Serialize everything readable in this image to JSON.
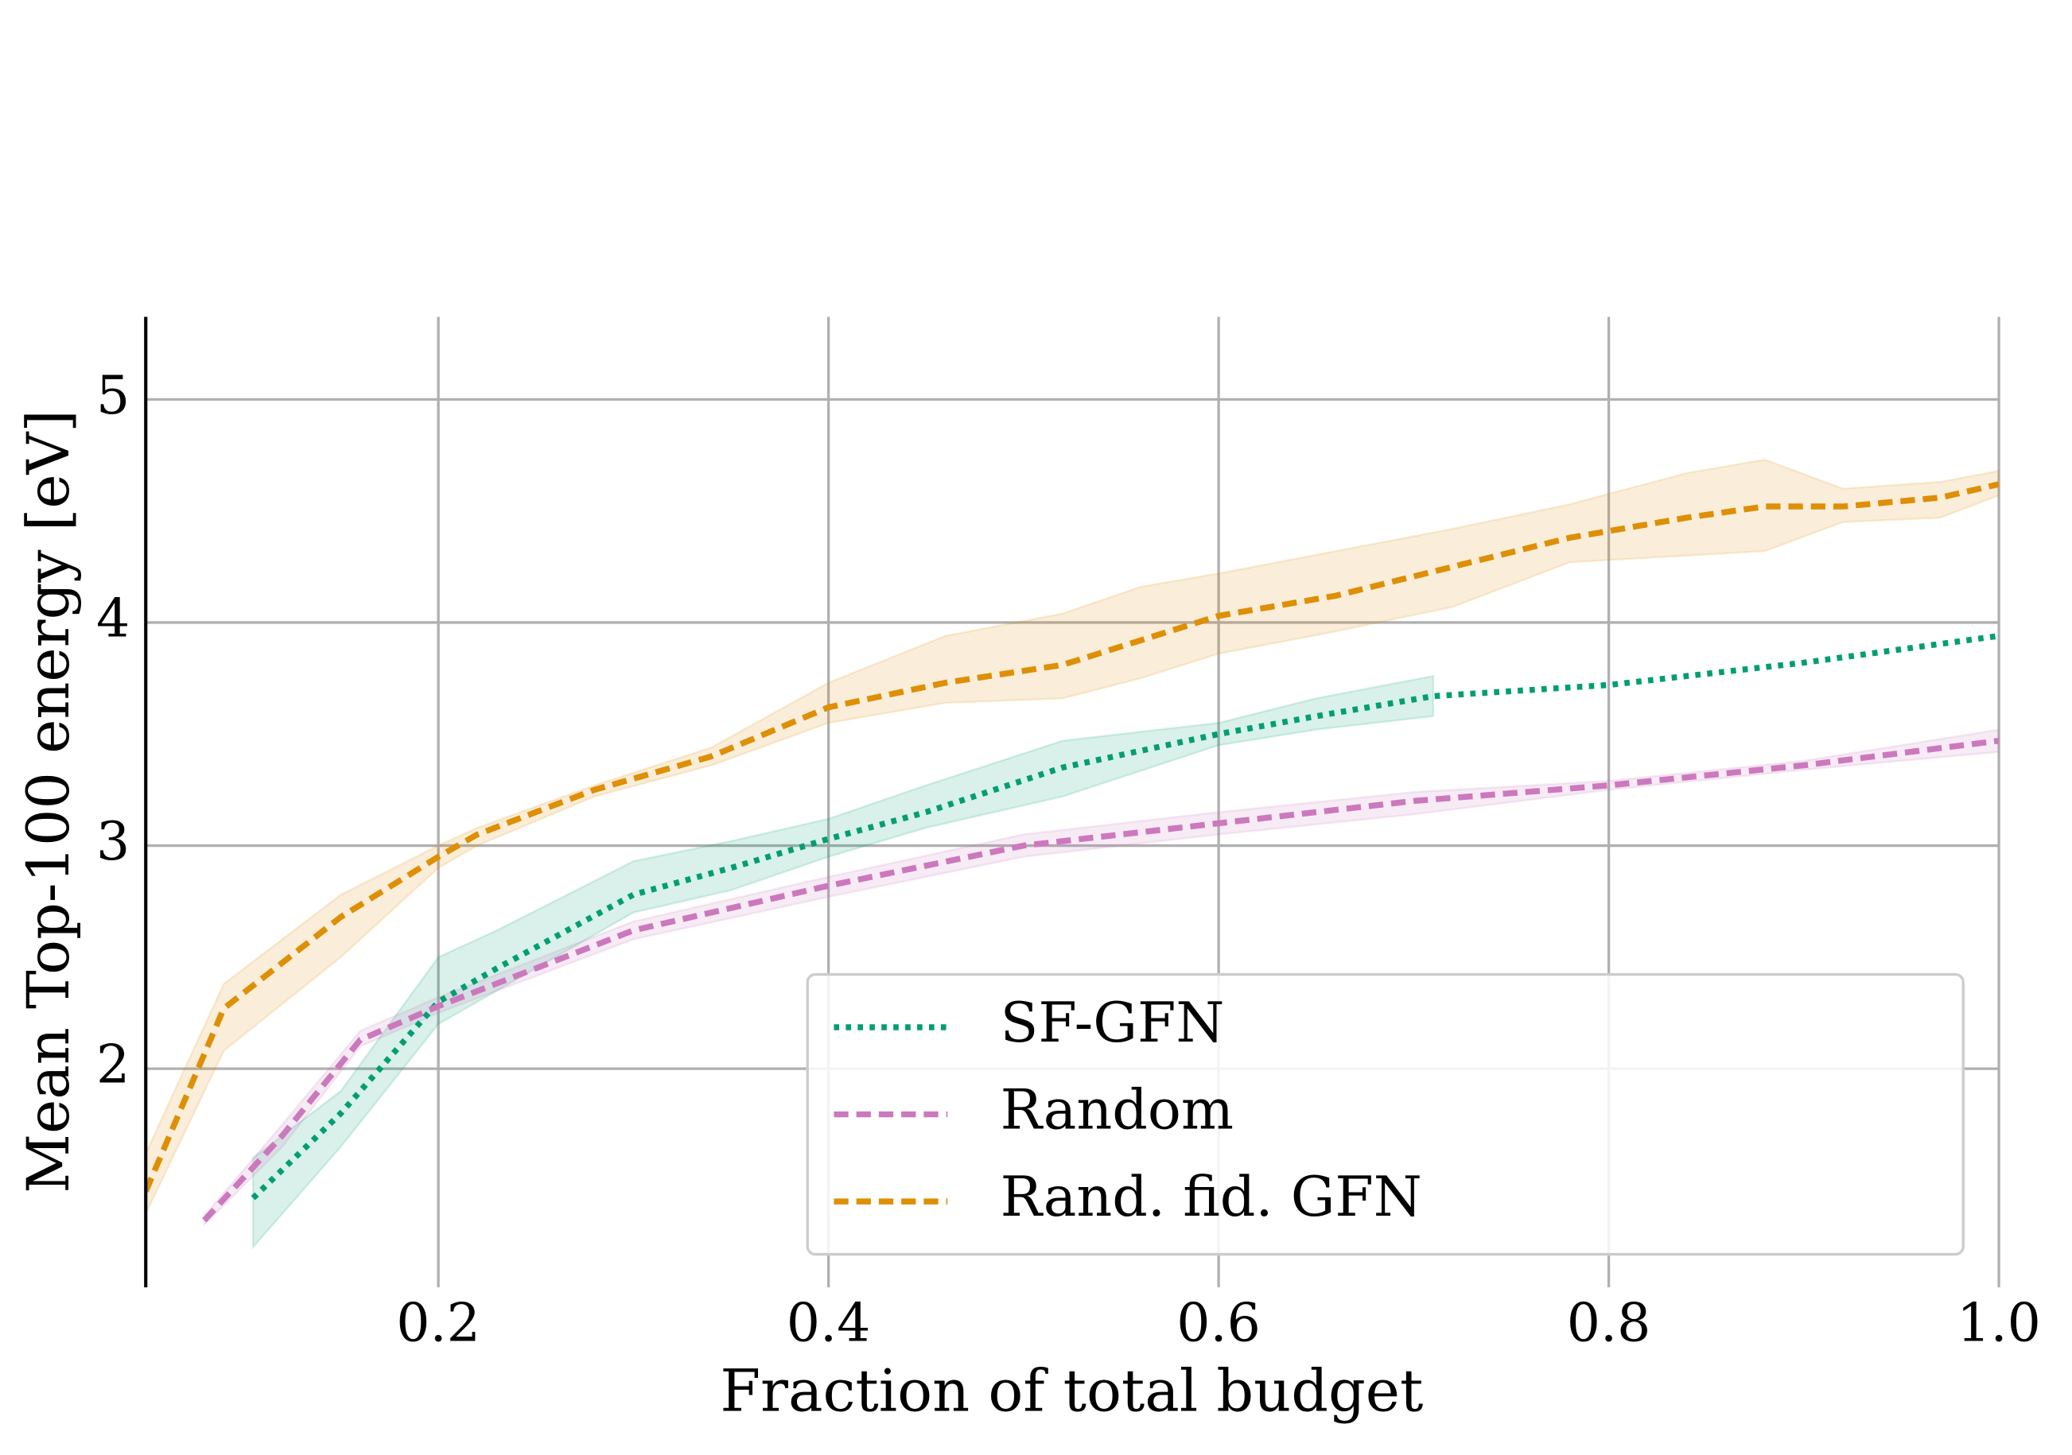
{
  "chart_data": {
    "type": "line",
    "x_label": "Fraction of total budget",
    "y_label": "Mean Top-100 energy [eV]",
    "xlim": [
      0.05,
      1.0
    ],
    "ylim": [
      1.02,
      5.37
    ],
    "xticks": [
      0.2,
      0.4,
      0.6,
      0.8,
      {
        "value": 1,
        "label": "1.0"
      }
    ],
    "yticks": [
      2,
      3,
      4,
      5
    ],
    "grid": true,
    "legend": "lower right",
    "series": [
      {
        "name": "SF-GFN",
        "color": "#029e73",
        "dash": "dotted",
        "x": [
          0.105,
          0.15,
          0.2,
          0.23,
          0.3,
          0.35,
          0.4,
          0.45,
          0.52,
          0.6,
          0.65,
          0.71,
          0.8,
          0.9,
          1.0
        ],
        "values": [
          1.42,
          1.8,
          2.3,
          2.45,
          2.78,
          2.9,
          3.03,
          3.15,
          3.35,
          3.5,
          3.58,
          3.67,
          3.72,
          3.82,
          3.94
        ],
        "band_lower": [
          1.2,
          1.65,
          2.2,
          2.35,
          2.7,
          2.8,
          2.95,
          3.08,
          3.22,
          3.45,
          3.52,
          3.58,
          null,
          null,
          null
        ],
        "band_upper": [
          1.6,
          1.9,
          2.5,
          2.62,
          2.93,
          3.02,
          3.12,
          3.27,
          3.47,
          3.55,
          3.66,
          3.76,
          null,
          null,
          null
        ]
      },
      {
        "name": "Random",
        "color": "#cc78bc",
        "dash": "dashed",
        "x": [
          0.08,
          0.12,
          0.16,
          0.2,
          0.3,
          0.4,
          0.5,
          0.6,
          0.7,
          0.8,
          0.9,
          1.0
        ],
        "values": [
          1.32,
          1.7,
          2.13,
          2.28,
          2.62,
          2.82,
          3.0,
          3.1,
          3.2,
          3.27,
          3.36,
          3.47
        ],
        "band_lower": [
          1.3,
          1.65,
          2.1,
          2.25,
          2.58,
          2.77,
          2.95,
          3.05,
          3.14,
          3.25,
          3.34,
          3.42
        ],
        "band_upper": [
          1.34,
          1.75,
          2.17,
          2.32,
          2.66,
          2.86,
          3.05,
          3.15,
          3.24,
          3.29,
          3.38,
          3.52
        ]
      },
      {
        "name": "Rand. fid. GFN",
        "color": "#de8f05",
        "dash": "dashed",
        "x": [
          0.05,
          0.09,
          0.15,
          0.2,
          0.22,
          0.28,
          0.34,
          0.4,
          0.46,
          0.52,
          0.56,
          0.6,
          0.66,
          0.72,
          0.78,
          0.84,
          0.88,
          0.92,
          0.97,
          1.0
        ],
        "values": [
          1.45,
          2.27,
          2.68,
          2.95,
          3.05,
          3.25,
          3.4,
          3.62,
          3.73,
          3.81,
          3.92,
          4.03,
          4.12,
          4.25,
          4.38,
          4.47,
          4.52,
          4.52,
          4.56,
          4.62
        ],
        "band_lower": [
          1.35,
          2.08,
          2.5,
          2.9,
          3.0,
          3.22,
          3.36,
          3.55,
          3.64,
          3.66,
          3.75,
          3.86,
          3.96,
          4.07,
          4.27,
          4.3,
          4.32,
          4.45,
          4.47,
          4.57
        ],
        "band_upper": [
          1.62,
          2.38,
          2.78,
          3.0,
          3.08,
          3.27,
          3.44,
          3.73,
          3.94,
          4.04,
          4.16,
          4.22,
          4.32,
          4.42,
          4.53,
          4.67,
          4.73,
          4.6,
          4.63,
          4.68
        ]
      }
    ]
  }
}
